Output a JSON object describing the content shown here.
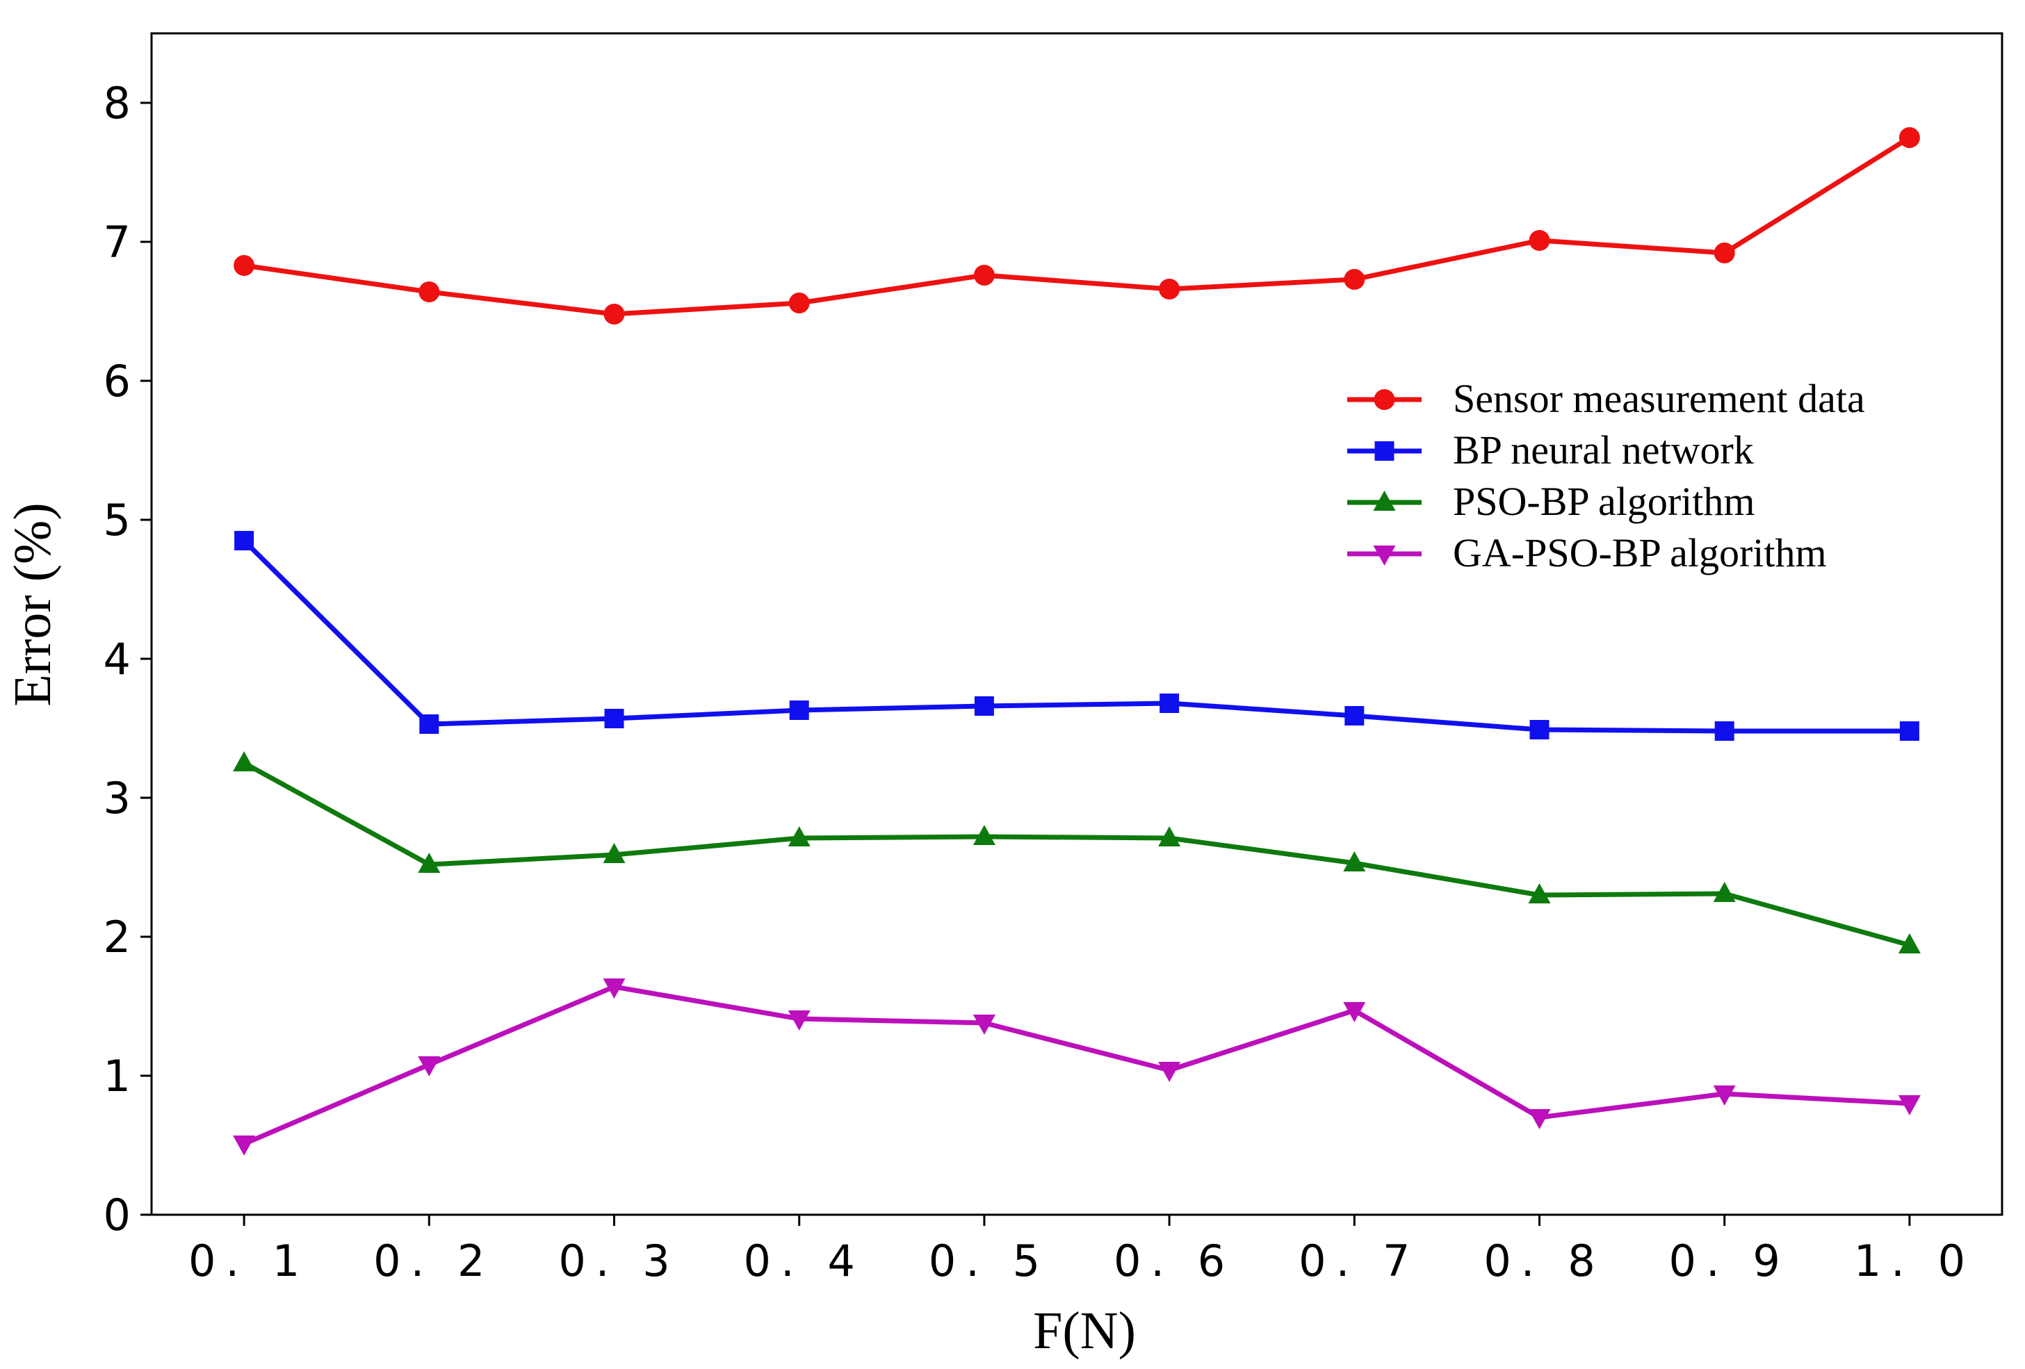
{
  "chart_data": {
    "type": "line",
    "title": "",
    "xlabel": "F(N)",
    "ylabel": "Error (%)",
    "x": [
      0.1,
      0.2,
      0.3,
      0.4,
      0.5,
      0.6,
      0.7,
      0.8,
      0.9,
      1.0
    ],
    "x_tick_labels": [
      "0. 1",
      "0. 2",
      "0. 3",
      "0. 4",
      "0. 5",
      "0. 6",
      "0. 7",
      "0. 8",
      "0. 9",
      "1. 0"
    ],
    "y_ticks": [
      0,
      1,
      2,
      3,
      4,
      5,
      6,
      7,
      8
    ],
    "ylim": [
      0,
      8.5
    ],
    "xlim": [
      0.05,
      1.05
    ],
    "grid": false,
    "legend_position": "center-right",
    "series": [
      {
        "name": "Sensor measurement data",
        "color": "#ee1111",
        "marker": "circle",
        "values": [
          6.83,
          6.64,
          6.48,
          6.56,
          6.76,
          6.66,
          6.73,
          7.01,
          6.92,
          7.75
        ]
      },
      {
        "name": "BP neural network",
        "color": "#1010ee",
        "marker": "square",
        "values": [
          4.85,
          3.53,
          3.57,
          3.63,
          3.66,
          3.68,
          3.59,
          3.49,
          3.48,
          3.48
        ]
      },
      {
        "name": "PSO-BP algorithm",
        "color": "#0e7a0e",
        "marker": "triangle-up",
        "values": [
          3.25,
          2.52,
          2.59,
          2.71,
          2.72,
          2.71,
          2.53,
          2.3,
          2.31,
          1.94
        ]
      },
      {
        "name": "GA-PSO-BP algorithm",
        "color": "#bb10bb",
        "marker": "triangle-down",
        "values": [
          0.51,
          1.08,
          1.64,
          1.41,
          1.38,
          1.04,
          1.47,
          0.7,
          0.87,
          0.8
        ]
      }
    ]
  }
}
